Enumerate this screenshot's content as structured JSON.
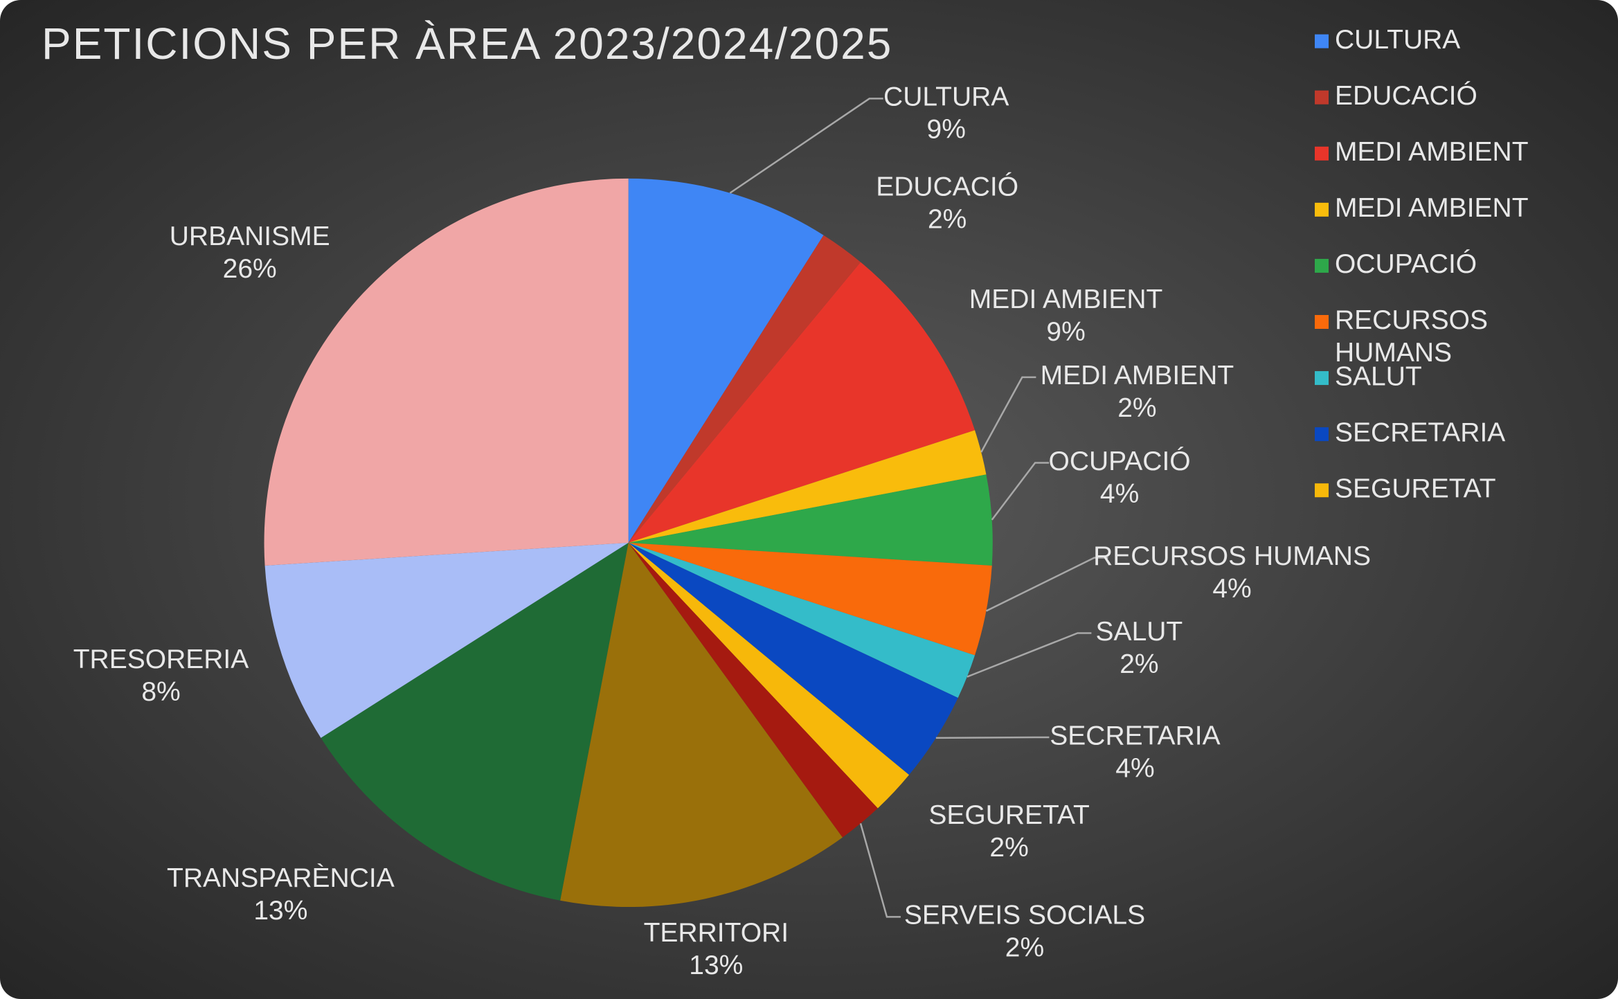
{
  "chart_data": {
    "type": "pie",
    "title": "PETICIONS PER ÀREA 2023/2024/2025",
    "categories": [
      "CULTURA",
      "EDUCACIÓ",
      "MEDI AMBIENT",
      "MEDI AMBIENT",
      "OCUPACIÓ",
      "RECURSOS HUMANS",
      "SALUT",
      "SECRETARIA",
      "SEGURETAT",
      "SERVEIS SOCIALS",
      "TERRITORI",
      "TRANSPARÈNCIA",
      "TRESORERIA",
      "URBANISME"
    ],
    "values": [
      9,
      2,
      9,
      2,
      4,
      4,
      2,
      4,
      2,
      2,
      13,
      13,
      8,
      26
    ],
    "value_labels": [
      "9%",
      "2%",
      "9%",
      "2%",
      "4%",
      "4%",
      "2%",
      "4%",
      "2%",
      "2%",
      "13%",
      "13%",
      "8%",
      "26%"
    ],
    "colors": [
      "#3f86f5",
      "#c0392b",
      "#e8352a",
      "#f9bc0c",
      "#2ea84a",
      "#f96a0b",
      "#34bcc9",
      "#0a48c1",
      "#f7b80a",
      "#a51a10",
      "#9a700a",
      "#1f6b35",
      "#a9bdf7",
      "#f0a6a6"
    ],
    "legend": [
      "CULTURA",
      "EDUCACIÓ",
      "MEDI AMBIENT",
      "MEDI AMBIENT",
      "OCUPACIÓ",
      "RECURSOS HUMANS",
      "SALUT",
      "SECRETARIA",
      "SEGURETAT"
    ]
  }
}
